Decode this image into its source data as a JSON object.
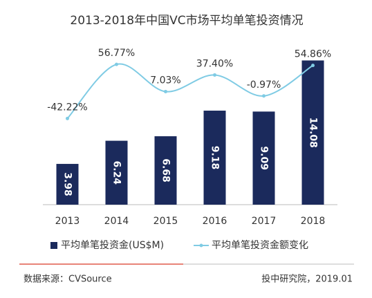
{
  "chart_data": {
    "type": "bar_line",
    "title": "2013-2018年中国VC市场平均单笔投资情况",
    "categories": [
      "2013",
      "2014",
      "2015",
      "2016",
      "2017",
      "2018"
    ],
    "series": [
      {
        "name": "平均单笔投资金(US$M)",
        "type": "bar",
        "color": "#1b2a5c",
        "values": [
          3.98,
          6.24,
          6.68,
          9.18,
          9.09,
          14.08
        ]
      },
      {
        "name": "平均单笔投资金额变化",
        "type": "line",
        "axis": "y2",
        "color": "#7fcbe4",
        "values": [
          -42.22,
          56.77,
          7.03,
          37.4,
          -0.97,
          54.86
        ],
        "value_labels": [
          "-42.22%",
          "56.77%",
          "7.03%",
          "37.40%",
          "-0.97%",
          "54.86%"
        ]
      }
    ],
    "ylim": [
      0,
      16
    ],
    "y2lim": [
      -200,
      100
    ],
    "source": "数据来源：CVSource",
    "credit": "投中研究院，2019.01"
  }
}
